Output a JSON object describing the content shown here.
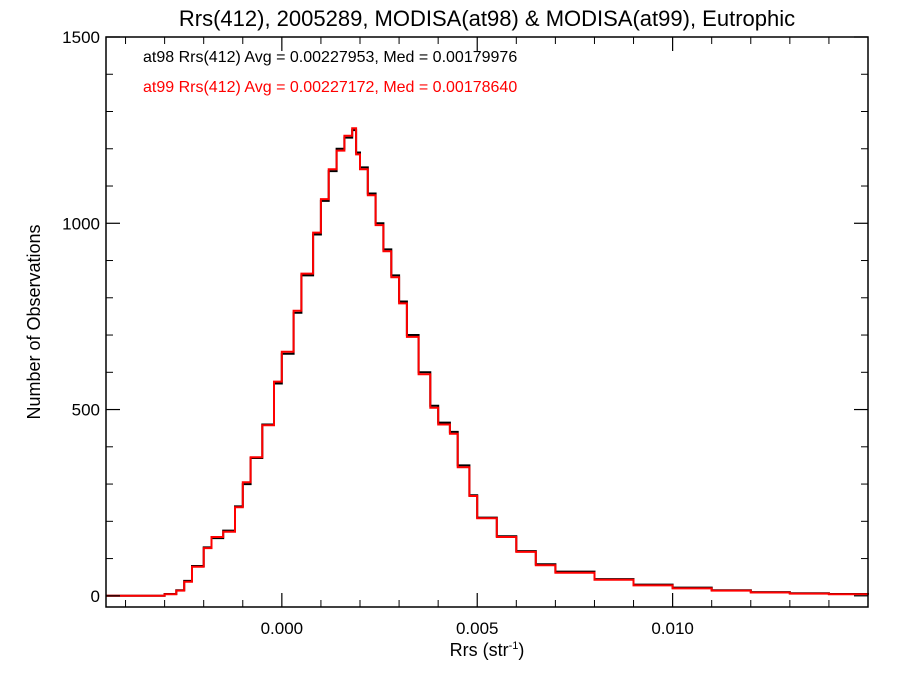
{
  "chart_data": {
    "type": "line",
    "step": true,
    "title": "Rrs(412), 2005289, MODISA(at98) & MODISA(at99), Eutrophic",
    "xlabel": "Rrs (str",
    "xlabel_sup": "-1",
    "xlabel_close": ")",
    "ylabel": "Number of Observations",
    "xlim": [
      -0.0045,
      0.015
    ],
    "ylim": [
      -30,
      1500
    ],
    "x_ticks": [
      0.0,
      0.005,
      0.01
    ],
    "x_tick_labels": [
      "0.000",
      "0.005",
      "0.010"
    ],
    "x_minor_step": 0.001,
    "y_ticks": [
      0,
      500,
      1000,
      1500
    ],
    "y_tick_labels": [
      "0",
      "500",
      "1000",
      "1500"
    ],
    "y_minor_step": 100,
    "grid": false,
    "legend_position": "top-left",
    "colors": {
      "at98": "#000000",
      "at99": "#ff0000",
      "axes": "#000000"
    },
    "annotations": [
      {
        "text": "at98 Rrs(412) Avg = 0.00227953, Med = 0.00179976",
        "color": "#000000"
      },
      {
        "text": "at99 Rrs(412) Avg = 0.00227172, Med = 0.00178640",
        "color": "#ff0000"
      }
    ],
    "series": [
      {
        "name": "at98",
        "color": "#000000",
        "x": [
          -0.0045,
          -0.0035,
          -0.003,
          -0.0027,
          -0.0025,
          -0.0023,
          -0.002,
          -0.0018,
          -0.0015,
          -0.0012,
          -0.001,
          -0.0008,
          -0.0005,
          -0.0002,
          0.0,
          0.0003,
          0.0005,
          0.0008,
          0.001,
          0.0012,
          0.0014,
          0.0016,
          0.0018,
          0.0019,
          0.002,
          0.0022,
          0.0024,
          0.0026,
          0.0028,
          0.003,
          0.0032,
          0.0035,
          0.0038,
          0.004,
          0.0043,
          0.0045,
          0.0048,
          0.005,
          0.0055,
          0.006,
          0.0065,
          0.007,
          0.008,
          0.009,
          0.01,
          0.011,
          0.012,
          0.013,
          0.014,
          0.015
        ],
        "y": [
          0,
          0,
          5,
          15,
          40,
          80,
          130,
          155,
          175,
          240,
          300,
          370,
          460,
          570,
          650,
          760,
          860,
          970,
          1060,
          1140,
          1200,
          1230,
          1250,
          1190,
          1150,
          1080,
          1000,
          930,
          860,
          790,
          700,
          600,
          510,
          465,
          440,
          350,
          270,
          210,
          160,
          120,
          85,
          65,
          45,
          30,
          22,
          15,
          10,
          7,
          5,
          3
        ]
      },
      {
        "name": "at99",
        "color": "#ff0000",
        "x": [
          -0.0045,
          -0.0035,
          -0.003,
          -0.0027,
          -0.0025,
          -0.0023,
          -0.002,
          -0.0018,
          -0.0015,
          -0.0012,
          -0.001,
          -0.0008,
          -0.0005,
          -0.0002,
          0.0,
          0.0003,
          0.0005,
          0.0008,
          0.001,
          0.0012,
          0.0014,
          0.0016,
          0.0018,
          0.0019,
          0.002,
          0.0022,
          0.0024,
          0.0026,
          0.0028,
          0.003,
          0.0032,
          0.0035,
          0.0038,
          0.004,
          0.0043,
          0.0045,
          0.0048,
          0.005,
          0.0055,
          0.006,
          0.0065,
          0.007,
          0.008,
          0.009,
          0.01,
          0.011,
          0.012,
          0.013,
          0.014,
          0.015
        ],
        "y": [
          0,
          0,
          4,
          14,
          38,
          78,
          128,
          158,
          172,
          238,
          305,
          372,
          458,
          575,
          655,
          765,
          865,
          975,
          1065,
          1145,
          1195,
          1235,
          1255,
          1185,
          1145,
          1075,
          995,
          925,
          855,
          785,
          695,
          595,
          505,
          460,
          435,
          345,
          268,
          208,
          158,
          118,
          82,
          62,
          43,
          28,
          20,
          14,
          9,
          6,
          4,
          2
        ]
      }
    ]
  }
}
